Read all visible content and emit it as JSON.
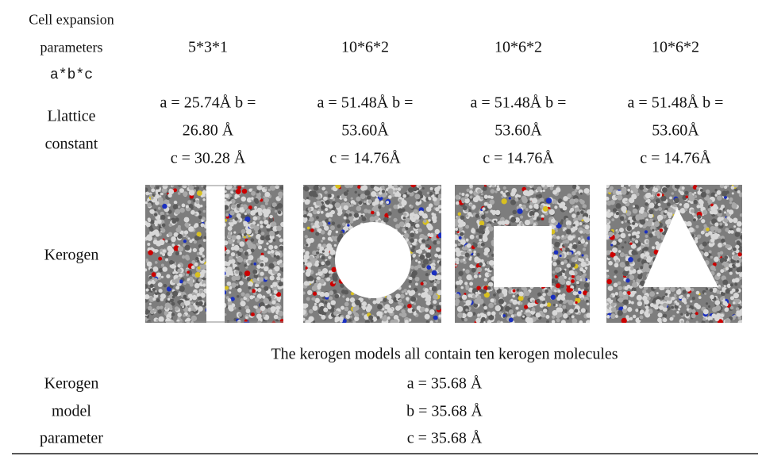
{
  "table": {
    "header": {
      "label": [
        "Cell expansion",
        "parameters",
        "a*b*c"
      ],
      "cells": [
        "5*3*1",
        "10*6*2",
        "10*6*2",
        "10*6*2"
      ]
    },
    "lattice": {
      "label": [
        "Llattice",
        "constant"
      ],
      "cells": [
        [
          "a = 25.74Å b =",
          "26.80 Å",
          "c = 30.28 Å"
        ],
        [
          "a = 51.48Å b =",
          "53.60Å",
          "c = 14.76Å"
        ],
        [
          "a = 51.48Å b =",
          "53.60Å",
          "c = 14.76Å"
        ],
        [
          "a = 51.48Å b =",
          "53.60Å",
          "c = 14.76Å"
        ]
      ]
    },
    "kerogen": {
      "label": "Kerogen"
    },
    "note": "The kerogen models all contain ten kerogen molecules",
    "model": {
      "label": [
        "Kerogen",
        "model",
        "parameter"
      ],
      "values": [
        "a = 35.68 Å",
        "b = 35.68 Å",
        "c = 35.68 Å"
      ]
    }
  }
}
